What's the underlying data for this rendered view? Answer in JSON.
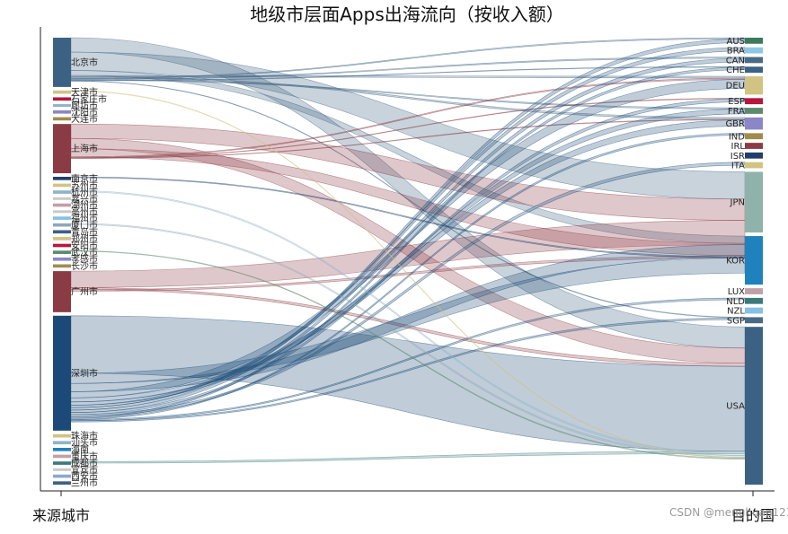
{
  "chart_data": {
    "type": "sankey",
    "title": "地级市层面Apps出海流向（按收入额）",
    "xlabel_left": "来源城市",
    "xlabel_right": "目的国",
    "watermark": "CSDN @menghuan1234",
    "sources": [
      {
        "name": "北京市",
        "value": 12,
        "color": "#3c6283"
      },
      {
        "name": "天津市",
        "value": 0.8,
        "color": "#d2c383"
      },
      {
        "name": "石家庄市",
        "value": 0.8,
        "color": "#b5173e"
      },
      {
        "name": "廊坊市",
        "value": 0.3,
        "color": "#8fb3c9"
      },
      {
        "name": "沈阳市",
        "value": 0.8,
        "color": "#8b87c6"
      },
      {
        "name": "大连市",
        "value": 0.8,
        "color": "#a08c4c"
      },
      {
        "name": "上海市",
        "value": 12,
        "color": "#8b3b43"
      },
      {
        "name": "南京市",
        "value": 0.8,
        "color": "#223f6a"
      },
      {
        "name": "苏州市",
        "value": 0.8,
        "color": "#d2c383"
      },
      {
        "name": "杭州市",
        "value": 0.8,
        "color": "#8fb3c9"
      },
      {
        "name": "嘉兴市",
        "value": 0.3,
        "color": "#c9c9c9"
      },
      {
        "name": "湖州市",
        "value": 0.8,
        "color": "#c0a0a8"
      },
      {
        "name": "亳州市",
        "value": 0.3,
        "color": "#c9c9c9"
      },
      {
        "name": "福州市",
        "value": 0.8,
        "color": "#86c0e3"
      },
      {
        "name": "厦门市",
        "value": 0.8,
        "color": "#8fa7b8"
      },
      {
        "name": "青岛市",
        "value": 0.8,
        "color": "#3c6283"
      },
      {
        "name": "郑州市",
        "value": 0.8,
        "color": "#d2c383"
      },
      {
        "name": "安阳市",
        "value": 0.8,
        "color": "#b5173e"
      },
      {
        "name": "武汉市",
        "value": 0.8,
        "color": "#5c8a6d"
      },
      {
        "name": "孝感市",
        "value": 0.8,
        "color": "#8b87c6"
      },
      {
        "name": "长沙市",
        "value": 0.8,
        "color": "#a08c4c"
      },
      {
        "name": "广州市",
        "value": 10,
        "color": "#8b3b43"
      },
      {
        "name": "深圳市",
        "value": 28,
        "color": "#1c4a78"
      },
      {
        "name": "珠海市",
        "value": 0.8,
        "color": "#d2c383"
      },
      {
        "name": "汕头市",
        "value": 0.8,
        "color": "#8fb3c9"
      },
      {
        "name": "海南",
        "value": 0.8,
        "color": "#1f82bd"
      },
      {
        "name": "重庆市",
        "value": 0.8,
        "color": "#c0a0a8"
      },
      {
        "name": "成都市",
        "value": 0.8,
        "color": "#3c7a7a"
      },
      {
        "name": "宜宾市",
        "value": 0.3,
        "color": "#c9c9c9"
      },
      {
        "name": "西安市",
        "value": 0.8,
        "color": "#8fa7d0"
      },
      {
        "name": "兰州市",
        "value": 0.8,
        "color": "#3c6283"
      }
    ],
    "targets": [
      {
        "name": "AUS",
        "value": 1,
        "color": "#3c7a5c"
      },
      {
        "name": "BRA",
        "value": 1,
        "color": "#8ec7e6"
      },
      {
        "name": "CAN",
        "value": 1,
        "color": "#4b6a84"
      },
      {
        "name": "CHE",
        "value": 1,
        "color": "#3c6283"
      },
      {
        "name": "DEU",
        "value": 3,
        "color": "#d2c383"
      },
      {
        "name": "ESP",
        "value": 1,
        "color": "#b5173e"
      },
      {
        "name": "FRA",
        "value": 1,
        "color": "#5c8a6d"
      },
      {
        "name": "GBR",
        "value": 2,
        "color": "#8b87c6"
      },
      {
        "name": "IND",
        "value": 1,
        "color": "#a08c4c"
      },
      {
        "name": "IRL",
        "value": 1,
        "color": "#8b3b43"
      },
      {
        "name": "ISR",
        "value": 1,
        "color": "#223f6a"
      },
      {
        "name": "ITA",
        "value": 1,
        "color": "#d2c383"
      },
      {
        "name": "JPN",
        "value": 10,
        "color": "#8fb3ab"
      },
      {
        "name": "KOR",
        "value": 8,
        "color": "#1f82bd"
      },
      {
        "name": "LUX",
        "value": 1,
        "color": "#c0a0a8"
      },
      {
        "name": "NLD",
        "value": 1,
        "color": "#3c7a7a"
      },
      {
        "name": "NZL",
        "value": 1,
        "color": "#86c0e3"
      },
      {
        "name": "SGP",
        "value": 1,
        "color": "#4b6a84"
      },
      {
        "name": "USA",
        "value": 26,
        "color": "#3c6283"
      }
    ],
    "flows": [
      {
        "source": "北京市",
        "target": "USA",
        "value": 3.5
      },
      {
        "source": "北京市",
        "target": "JPN",
        "value": 4.5
      },
      {
        "source": "北京市",
        "target": "KOR",
        "value": 1.2
      },
      {
        "source": "北京市",
        "target": "DEU",
        "value": 0.3
      },
      {
        "source": "北京市",
        "target": "GBR",
        "value": 0.3
      },
      {
        "source": "北京市",
        "target": "AUS",
        "value": 0.2
      },
      {
        "source": "北京市",
        "target": "CAN",
        "value": 0.2
      },
      {
        "source": "北京市",
        "target": "FRA",
        "value": 0.2
      },
      {
        "source": "北京市",
        "target": "CHE",
        "value": 0.1
      },
      {
        "source": "北京市",
        "target": "SGP",
        "value": 0.1
      },
      {
        "source": "上海市",
        "target": "JPN",
        "value": 3.5
      },
      {
        "source": "上海市",
        "target": "USA",
        "value": 2.5
      },
      {
        "source": "上海市",
        "target": "KOR",
        "value": 2
      },
      {
        "source": "上海市",
        "target": "DEU",
        "value": 0.2
      },
      {
        "source": "上海市",
        "target": "ESP",
        "value": 0.1
      },
      {
        "source": "上海市",
        "target": "GBR",
        "value": 0.1
      },
      {
        "source": "广州市",
        "target": "JPN",
        "value": 4
      },
      {
        "source": "广州市",
        "target": "USA",
        "value": 0.5
      },
      {
        "source": "广州市",
        "target": "KOR",
        "value": 0.4
      },
      {
        "source": "深圳市",
        "target": "USA",
        "value": 14
      },
      {
        "source": "深圳市",
        "target": "KOR",
        "value": 2.5
      },
      {
        "source": "深圳市",
        "target": "JPN",
        "value": 2
      },
      {
        "source": "深圳市",
        "target": "DEU",
        "value": 1.5
      },
      {
        "source": "深圳市",
        "target": "GBR",
        "value": 1
      },
      {
        "source": "深圳市",
        "target": "FRA",
        "value": 0.8
      },
      {
        "source": "深圳市",
        "target": "BRA",
        "value": 0.6
      },
      {
        "source": "深圳市",
        "target": "AUS",
        "value": 0.6
      },
      {
        "source": "深圳市",
        "target": "CAN",
        "value": 0.6
      },
      {
        "source": "深圳市",
        "target": "ESP",
        "value": 0.5
      },
      {
        "source": "深圳市",
        "target": "ITA",
        "value": 0.5
      },
      {
        "source": "深圳市",
        "target": "CHE",
        "value": 0.4
      },
      {
        "source": "深圳市",
        "target": "IND",
        "value": 0.3
      },
      {
        "source": "深圳市",
        "target": "NLD",
        "value": 0.3
      },
      {
        "source": "深圳市",
        "target": "SGP",
        "value": 0.3
      },
      {
        "source": "成都市",
        "target": "USA",
        "value": 0.4
      },
      {
        "source": "杭州市",
        "target": "USA",
        "value": 0.3
      },
      {
        "source": "厦门市",
        "target": "USA",
        "value": 0.3
      },
      {
        "source": "南京市",
        "target": "JPN",
        "value": 0.2
      },
      {
        "source": "天津市",
        "target": "USA",
        "value": 0.15
      },
      {
        "source": "武汉市",
        "target": "USA",
        "value": 0.15
      }
    ]
  }
}
